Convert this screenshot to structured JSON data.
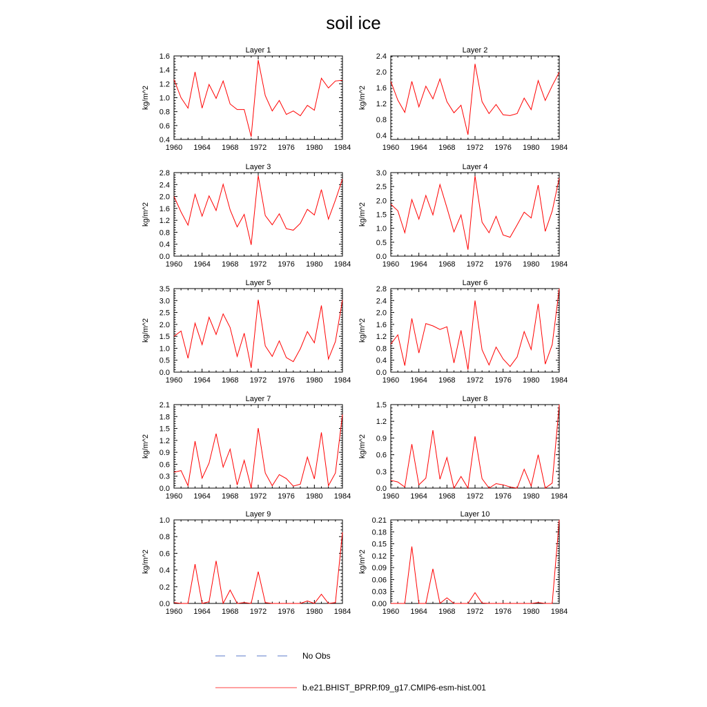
{
  "title": "soil ice",
  "legend": {
    "no_obs_label": "No Obs",
    "model_label": "b.e21.BHIST_BPRP.f09_g17.CMIP6-esm-hist.001",
    "model_color": "#ff0000",
    "no_obs_color": "#5a78c8"
  },
  "chart_data": [
    {
      "type": "line",
      "title": "Layer 1",
      "xlabel": "",
      "ylabel": "kg/m^2",
      "xlim": [
        1960,
        1984
      ],
      "ylim": [
        0.4,
        1.6
      ],
      "xticks": [
        "1960",
        "1964",
        "1968",
        "1972",
        "1976",
        "1980",
        "1984"
      ],
      "yticks": [
        "0.4",
        "0.6",
        "0.8",
        "1.0",
        "1.2",
        "1.4",
        "1.6"
      ],
      "x": [
        1960,
        1961,
        1962,
        1963,
        1964,
        1965,
        1966,
        1967,
        1968,
        1969,
        1970,
        1971,
        1972,
        1973,
        1974,
        1975,
        1976,
        1977,
        1978,
        1979,
        1980,
        1981,
        1982,
        1983,
        1984
      ],
      "series": [
        {
          "name": "b.e21.BHIST_BPRP.f09_g17.CMIP6-esm-hist.001",
          "color": "#ff0000",
          "values": [
            1.26,
            1.0,
            0.85,
            1.37,
            0.85,
            1.19,
            0.99,
            1.24,
            0.91,
            0.83,
            0.83,
            0.44,
            1.54,
            1.03,
            0.81,
            0.96,
            0.76,
            0.81,
            0.74,
            0.89,
            0.82,
            1.28,
            1.14,
            1.24,
            1.25
          ]
        }
      ]
    },
    {
      "type": "line",
      "title": "Layer 2",
      "xlabel": "",
      "ylabel": "kg/m^2",
      "xlim": [
        1960,
        1984
      ],
      "ylim": [
        0.3,
        2.4
      ],
      "xticks": [
        "1960",
        "1964",
        "1968",
        "1972",
        "1976",
        "1980",
        "1984"
      ],
      "yticks": [
        "0.4",
        "0.8",
        "1.2",
        "1.6",
        "2.0",
        "2.4"
      ],
      "x": [
        1960,
        1961,
        1962,
        1963,
        1964,
        1965,
        1966,
        1967,
        1968,
        1969,
        1970,
        1971,
        1972,
        1973,
        1974,
        1975,
        1976,
        1977,
        1978,
        1979,
        1980,
        1981,
        1982,
        1983,
        1984
      ],
      "series": [
        {
          "name": "b.e21.BHIST_BPRP.f09_g17.CMIP6-esm-hist.001",
          "color": "#ff0000",
          "values": [
            1.76,
            1.29,
            0.98,
            1.76,
            1.12,
            1.64,
            1.32,
            1.82,
            1.25,
            0.97,
            1.16,
            0.42,
            2.2,
            1.25,
            0.95,
            1.18,
            0.92,
            0.9,
            0.95,
            1.34,
            1.05,
            1.78,
            1.28,
            1.65,
            1.99
          ]
        }
      ]
    },
    {
      "type": "line",
      "title": "Layer 3",
      "xlabel": "",
      "ylabel": "kg/m^2",
      "xlim": [
        1960,
        1984
      ],
      "ylim": [
        0.0,
        2.8
      ],
      "xticks": [
        "1960",
        "1964",
        "1968",
        "1972",
        "1976",
        "1980",
        "1984"
      ],
      "yticks": [
        "0.0",
        "0.4",
        "0.8",
        "1.2",
        "1.6",
        "2.0",
        "2.4",
        "2.8"
      ],
      "x": [
        1960,
        1961,
        1962,
        1963,
        1964,
        1965,
        1966,
        1967,
        1968,
        1969,
        1970,
        1971,
        1972,
        1973,
        1974,
        1975,
        1976,
        1977,
        1978,
        1979,
        1980,
        1981,
        1982,
        1983,
        1984
      ],
      "series": [
        {
          "name": "b.e21.BHIST_BPRP.f09_g17.CMIP6-esm-hist.001",
          "color": "#ff0000",
          "values": [
            2.0,
            1.48,
            1.04,
            2.07,
            1.34,
            2.02,
            1.53,
            2.41,
            1.55,
            0.98,
            1.4,
            0.38,
            2.7,
            1.36,
            1.05,
            1.42,
            0.92,
            0.87,
            1.1,
            1.57,
            1.38,
            2.23,
            1.24,
            1.88,
            2.58
          ]
        }
      ]
    },
    {
      "type": "line",
      "title": "Layer 4",
      "xlabel": "",
      "ylabel": "kg/m^2",
      "xlim": [
        1960,
        1984
      ],
      "ylim": [
        0.0,
        3.0
      ],
      "xticks": [
        "1960",
        "1964",
        "1968",
        "1972",
        "1976",
        "1980",
        "1984"
      ],
      "yticks": [
        "0.0",
        "0.5",
        "1.0",
        "1.5",
        "2.0",
        "2.5",
        "3.0"
      ],
      "x": [
        1960,
        1961,
        1962,
        1963,
        1964,
        1965,
        1966,
        1967,
        1968,
        1969,
        1970,
        1971,
        1972,
        1973,
        1974,
        1975,
        1976,
        1977,
        1978,
        1979,
        1980,
        1981,
        1982,
        1983,
        1984
      ],
      "series": [
        {
          "name": "b.e21.BHIST_BPRP.f09_g17.CMIP6-esm-hist.001",
          "color": "#ff0000",
          "values": [
            1.87,
            1.63,
            0.84,
            2.03,
            1.33,
            2.18,
            1.48,
            2.57,
            1.74,
            0.87,
            1.48,
            0.23,
            2.88,
            1.22,
            0.84,
            1.43,
            0.76,
            0.68,
            1.12,
            1.58,
            1.37,
            2.55,
            0.89,
            1.62,
            2.81
          ]
        }
      ]
    },
    {
      "type": "line",
      "title": "Layer 5",
      "xlabel": "",
      "ylabel": "kg/m^2",
      "xlim": [
        1960,
        1984
      ],
      "ylim": [
        0.0,
        3.5
      ],
      "xticks": [
        "1960",
        "1964",
        "1968",
        "1972",
        "1976",
        "1980",
        "1984"
      ],
      "yticks": [
        "0.0",
        "0.5",
        "1.0",
        "1.5",
        "2.0",
        "2.5",
        "3.0",
        "3.5"
      ],
      "x": [
        1960,
        1961,
        1962,
        1963,
        1964,
        1965,
        1966,
        1967,
        1968,
        1969,
        1970,
        1971,
        1972,
        1973,
        1974,
        1975,
        1976,
        1977,
        1978,
        1979,
        1980,
        1981,
        1982,
        1983,
        1984
      ],
      "series": [
        {
          "name": "b.e21.BHIST_BPRP.f09_g17.CMIP6-esm-hist.001",
          "color": "#ff0000",
          "values": [
            1.5,
            1.72,
            0.58,
            2.05,
            1.15,
            2.3,
            1.58,
            2.44,
            1.87,
            0.66,
            1.63,
            0.18,
            3.03,
            1.1,
            0.66,
            1.31,
            0.61,
            0.44,
            0.98,
            1.7,
            1.23,
            2.79,
            0.55,
            1.28,
            3.02
          ]
        }
      ]
    },
    {
      "type": "line",
      "title": "Layer 6",
      "xlabel": "",
      "ylabel": "kg/m^2",
      "xlim": [
        1960,
        1984
      ],
      "ylim": [
        0.0,
        2.8
      ],
      "xticks": [
        "1960",
        "1964",
        "1968",
        "1972",
        "1976",
        "1980",
        "1984"
      ],
      "yticks": [
        "0.0",
        "0.4",
        "0.8",
        "1.2",
        "1.6",
        "2.0",
        "2.4",
        "2.8"
      ],
      "x": [
        1960,
        1961,
        1962,
        1963,
        1964,
        1965,
        1966,
        1967,
        1968,
        1969,
        1970,
        1971,
        1972,
        1973,
        1974,
        1975,
        1976,
        1977,
        1978,
        1979,
        1980,
        1981,
        1982,
        1983,
        1984
      ],
      "series": [
        {
          "name": "b.e21.BHIST_BPRP.f09_g17.CMIP6-esm-hist.001",
          "color": "#ff0000",
          "values": [
            0.94,
            1.25,
            0.22,
            1.8,
            0.64,
            1.63,
            1.55,
            1.43,
            1.52,
            0.31,
            1.4,
            0.08,
            2.4,
            0.75,
            0.24,
            0.84,
            0.44,
            0.19,
            0.51,
            1.36,
            0.76,
            2.29,
            0.27,
            0.92,
            2.8
          ]
        }
      ]
    },
    {
      "type": "line",
      "title": "Layer 7",
      "xlabel": "",
      "ylabel": "kg/m^2",
      "xlim": [
        1960,
        1984
      ],
      "ylim": [
        0.0,
        2.1
      ],
      "xticks": [
        "1960",
        "1964",
        "1968",
        "1972",
        "1976",
        "1980",
        "1984"
      ],
      "yticks": [
        "0.0",
        "0.3",
        "0.6",
        "0.9",
        "1.2",
        "1.5",
        "1.8",
        "2.1"
      ],
      "x": [
        1960,
        1961,
        1962,
        1963,
        1964,
        1965,
        1966,
        1967,
        1968,
        1969,
        1970,
        1971,
        1972,
        1973,
        1974,
        1975,
        1976,
        1977,
        1978,
        1979,
        1980,
        1981,
        1982,
        1983,
        1984
      ],
      "series": [
        {
          "name": "b.e21.BHIST_BPRP.f09_g17.CMIP6-esm-hist.001",
          "color": "#ff0000",
          "values": [
            0.4,
            0.44,
            0.06,
            1.18,
            0.25,
            0.63,
            1.37,
            0.53,
            0.98,
            0.08,
            0.7,
            0.0,
            1.51,
            0.38,
            0.06,
            0.34,
            0.24,
            0.05,
            0.1,
            0.78,
            0.23,
            1.4,
            0.06,
            0.38,
            1.85
          ]
        }
      ]
    },
    {
      "type": "line",
      "title": "Layer 8",
      "xlabel": "",
      "ylabel": "kg/m^2",
      "xlim": [
        1960,
        1984
      ],
      "ylim": [
        0.0,
        1.5
      ],
      "xticks": [
        "1960",
        "1964",
        "1968",
        "1972",
        "1976",
        "1980",
        "1984"
      ],
      "yticks": [
        "0.0",
        "0.3",
        "0.6",
        "0.9",
        "1.2",
        "1.5"
      ],
      "x": [
        1960,
        1961,
        1962,
        1963,
        1964,
        1965,
        1966,
        1967,
        1968,
        1969,
        1970,
        1971,
        1972,
        1973,
        1974,
        1975,
        1976,
        1977,
        1978,
        1979,
        1980,
        1981,
        1982,
        1983,
        1984
      ],
      "series": [
        {
          "name": "b.e21.BHIST_BPRP.f09_g17.CMIP6-esm-hist.001",
          "color": "#ff0000",
          "values": [
            0.14,
            0.11,
            0.02,
            0.79,
            0.06,
            0.18,
            1.04,
            0.16,
            0.55,
            0.0,
            0.21,
            0.0,
            0.93,
            0.17,
            0.0,
            0.08,
            0.06,
            0.02,
            0.0,
            0.34,
            0.04,
            0.6,
            0.0,
            0.09,
            1.5
          ]
        }
      ]
    },
    {
      "type": "line",
      "title": "Layer 9",
      "xlabel": "",
      "ylabel": "kg/m^2",
      "xlim": [
        1960,
        1984
      ],
      "ylim": [
        0.0,
        1.0
      ],
      "xticks": [
        "1960",
        "1964",
        "1968",
        "1972",
        "1976",
        "1980",
        "1984"
      ],
      "yticks": [
        "0.0",
        "0.2",
        "0.4",
        "0.6",
        "0.8",
        "1.0"
      ],
      "x": [
        1960,
        1961,
        1962,
        1963,
        1964,
        1965,
        1966,
        1967,
        1968,
        1969,
        1970,
        1971,
        1972,
        1973,
        1974,
        1975,
        1976,
        1977,
        1978,
        1979,
        1980,
        1981,
        1982,
        1983,
        1984
      ],
      "series": [
        {
          "name": "b.e21.BHIST_BPRP.f09_g17.CMIP6-esm-hist.001",
          "color": "#ff0000",
          "values": [
            0.01,
            0.0,
            0.0,
            0.47,
            0.0,
            0.02,
            0.51,
            0.0,
            0.16,
            0.0,
            0.01,
            0.0,
            0.38,
            0.01,
            0.0,
            0.0,
            0.0,
            0.0,
            0.0,
            0.03,
            0.0,
            0.11,
            0.0,
            0.01,
            0.85
          ]
        }
      ]
    },
    {
      "type": "line",
      "title": "Layer 10",
      "xlabel": "",
      "ylabel": "kg/m^2",
      "xlim": [
        1960,
        1984
      ],
      "ylim": [
        0.0,
        0.21
      ],
      "xticks": [
        "1960",
        "1964",
        "1968",
        "1972",
        "1976",
        "1980",
        "1984"
      ],
      "yticks": [
        "0.00",
        "0.03",
        "0.06",
        "0.09",
        "0.12",
        "0.15",
        "0.18",
        "0.21"
      ],
      "x": [
        1960,
        1961,
        1962,
        1963,
        1964,
        1965,
        1966,
        1967,
        1968,
        1969,
        1970,
        1971,
        1972,
        1973,
        1974,
        1975,
        1976,
        1977,
        1978,
        1979,
        1980,
        1981,
        1982,
        1983,
        1984
      ],
      "series": [
        {
          "name": "b.e21.BHIST_BPRP.f09_g17.CMIP6-esm-hist.001",
          "color": "#ff0000",
          "values": [
            0.0,
            0.0,
            0.0,
            0.143,
            0.0,
            0.0,
            0.087,
            0.0,
            0.014,
            0.0,
            0.0,
            0.0,
            0.027,
            0.001,
            0.0,
            0.0,
            0.0,
            0.0,
            0.0,
            0.0,
            0.0,
            0.002,
            0.0,
            0.0,
            0.21
          ]
        }
      ]
    }
  ]
}
